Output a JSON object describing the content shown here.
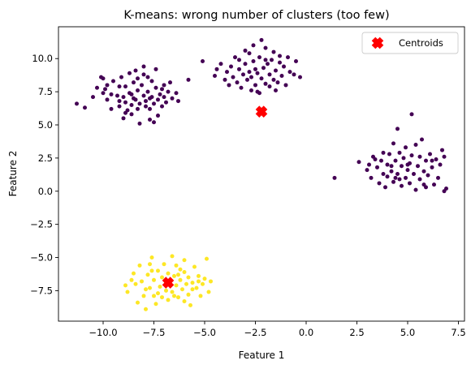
{
  "chart_data": {
    "type": "scatter",
    "title": "K-means: wrong number of clusters (too few)",
    "xlabel": "Feature 1",
    "ylabel": "Feature 2",
    "xlim": [
      -12.2,
      7.8
    ],
    "ylim": [
      -9.8,
      12.4
    ],
    "xticks": [
      -10.0,
      -7.5,
      -5.0,
      -2.5,
      0.0,
      2.5,
      5.0,
      7.5
    ],
    "xtick_labels": [
      "−10.0",
      "−7.5",
      "−5.0",
      "−2.5",
      "0.0",
      "2.5",
      "5.0",
      "7.5"
    ],
    "yticks": [
      -7.5,
      -5.0,
      -2.5,
      0.0,
      2.5,
      5.0,
      7.5,
      10.0
    ],
    "ytick_labels": [
      "−7.5",
      "−5.0",
      "−2.5",
      "0.0",
      "2.5",
      "5.0",
      "7.5",
      "10.0"
    ],
    "grid": false,
    "legend": {
      "position": "top-right",
      "entries": [
        "Centroids"
      ]
    },
    "colors": {
      "cluster_a": "#440154",
      "cluster_b": "#fde725",
      "centroid": "#ff0000"
    },
    "series": [
      {
        "cluster": "a",
        "points": [
          [
            -11.3,
            6.6
          ],
          [
            -10.9,
            6.3
          ],
          [
            -10.5,
            7.1
          ],
          [
            -10.3,
            7.8
          ],
          [
            -10.1,
            8.6
          ],
          [
            -10.0,
            8.5
          ],
          [
            -10.0,
            7.4
          ],
          [
            -9.8,
            6.9
          ],
          [
            -9.8,
            8.0
          ],
          [
            -9.6,
            7.3
          ],
          [
            -9.6,
            6.2
          ],
          [
            -9.5,
            8.3
          ],
          [
            -9.3,
            7.2
          ],
          [
            -9.2,
            6.8
          ],
          [
            -9.2,
            6.4
          ],
          [
            -9.1,
            8.6
          ],
          [
            -9.0,
            7.1
          ],
          [
            -9.0,
            5.5
          ],
          [
            -8.9,
            7.9
          ],
          [
            -8.9,
            6.7
          ],
          [
            -8.8,
            6.1
          ],
          [
            -8.7,
            7.4
          ],
          [
            -8.7,
            8.9
          ],
          [
            -8.6,
            6.5
          ],
          [
            -8.6,
            5.8
          ],
          [
            -8.5,
            7.0
          ],
          [
            -8.5,
            8.2
          ],
          [
            -8.4,
            6.9
          ],
          [
            -8.4,
            9.1
          ],
          [
            -8.3,
            7.6
          ],
          [
            -8.3,
            6.2
          ],
          [
            -8.2,
            6.6
          ],
          [
            -8.2,
            5.1
          ],
          [
            -8.1,
            8.0
          ],
          [
            -8.0,
            7.2
          ],
          [
            -8.0,
            9.4
          ],
          [
            -7.9,
            6.8
          ],
          [
            -7.9,
            6.4
          ],
          [
            -7.8,
            7.5
          ],
          [
            -7.8,
            8.6
          ],
          [
            -7.7,
            6.2
          ],
          [
            -7.7,
            5.4
          ],
          [
            -7.6,
            7.1
          ],
          [
            -7.6,
            8.3
          ],
          [
            -7.5,
            6.6
          ],
          [
            -7.4,
            9.2
          ],
          [
            -7.4,
            7.8
          ],
          [
            -7.3,
            6.9
          ],
          [
            -7.3,
            5.7
          ],
          [
            -7.2,
            7.3
          ],
          [
            -7.1,
            6.4
          ],
          [
            -7.0,
            8.0
          ],
          [
            -7.0,
            7.1
          ],
          [
            -6.9,
            6.7
          ],
          [
            -6.8,
            7.5
          ],
          [
            -6.7,
            8.2
          ],
          [
            -6.6,
            7.0
          ],
          [
            -6.4,
            7.4
          ],
          [
            -6.3,
            6.8
          ],
          [
            -8.0,
            8.8
          ],
          [
            -8.6,
            7.3
          ],
          [
            -9.2,
            7.9
          ],
          [
            -7.5,
            5.2
          ],
          [
            -8.9,
            5.9
          ],
          [
            -9.9,
            7.7
          ],
          [
            -7.1,
            7.7
          ],
          [
            -8.3,
            8.5
          ],
          [
            -7.7,
            7.0
          ],
          [
            -5.8,
            8.4
          ],
          [
            -5.1,
            9.8
          ],
          [
            -4.5,
            8.7
          ],
          [
            -4.2,
            9.6
          ],
          [
            -4.0,
            8.4
          ],
          [
            -3.9,
            9.0
          ],
          [
            -3.8,
            8.0
          ],
          [
            -3.7,
            9.4
          ],
          [
            -3.6,
            8.6
          ],
          [
            -3.5,
            10.1
          ],
          [
            -3.4,
            8.2
          ],
          [
            -3.3,
            9.2
          ],
          [
            -3.2,
            7.8
          ],
          [
            -3.1,
            8.8
          ],
          [
            -3.0,
            9.6
          ],
          [
            -2.9,
            8.4
          ],
          [
            -2.8,
            10.4
          ],
          [
            -2.8,
            9.0
          ],
          [
            -2.7,
            7.6
          ],
          [
            -2.7,
            8.6
          ],
          [
            -2.6,
            9.8
          ],
          [
            -2.5,
            9.2
          ],
          [
            -2.5,
            8.0
          ],
          [
            -2.4,
            8.9
          ],
          [
            -2.3,
            10.1
          ],
          [
            -2.3,
            7.4
          ],
          [
            -2.2,
            8.5
          ],
          [
            -2.2,
            11.4
          ],
          [
            -2.1,
            9.3
          ],
          [
            -2.0,
            8.1
          ],
          [
            -2.0,
            10.8
          ],
          [
            -1.9,
            9.6
          ],
          [
            -1.8,
            8.8
          ],
          [
            -1.8,
            7.9
          ],
          [
            -1.7,
            9.9
          ],
          [
            -1.6,
            8.4
          ],
          [
            -1.6,
            10.5
          ],
          [
            -1.5,
            9.1
          ],
          [
            -1.4,
            8.2
          ],
          [
            -1.3,
            9.7
          ],
          [
            -1.3,
            10.2
          ],
          [
            -1.2,
            8.7
          ],
          [
            -1.1,
            9.4
          ],
          [
            -1.0,
            8.0
          ],
          [
            -0.9,
            10.1
          ],
          [
            -0.8,
            9.0
          ],
          [
            -0.6,
            8.8
          ],
          [
            -0.5,
            9.8
          ],
          [
            -0.3,
            8.6
          ],
          [
            -2.6,
            11.0
          ],
          [
            -3.0,
            10.6
          ],
          [
            -2.4,
            7.5
          ],
          [
            -1.5,
            7.6
          ],
          [
            -3.3,
            9.9
          ],
          [
            -4.4,
            9.2
          ],
          [
            -2.0,
            9.9
          ],
          [
            1.4,
            1.0
          ],
          [
            2.6,
            2.2
          ],
          [
            3.0,
            1.6
          ],
          [
            3.2,
            1.0
          ],
          [
            3.3,
            2.6
          ],
          [
            3.5,
            1.8
          ],
          [
            3.6,
            0.6
          ],
          [
            3.7,
            2.3
          ],
          [
            3.8,
            1.3
          ],
          [
            3.8,
            2.9
          ],
          [
            3.9,
            0.3
          ],
          [
            4.0,
            2.0
          ],
          [
            4.0,
            1.1
          ],
          [
            4.1,
            2.8
          ],
          [
            4.2,
            1.5
          ],
          [
            4.3,
            3.6
          ],
          [
            4.3,
            0.7
          ],
          [
            4.4,
            2.3
          ],
          [
            4.5,
            4.7
          ],
          [
            4.5,
            1.3
          ],
          [
            4.6,
            2.9
          ],
          [
            4.7,
            0.4
          ],
          [
            4.7,
            1.9
          ],
          [
            4.8,
            2.5
          ],
          [
            4.9,
            1.0
          ],
          [
            4.9,
            3.3
          ],
          [
            5.0,
            1.6
          ],
          [
            5.1,
            0.6
          ],
          [
            5.1,
            2.1
          ],
          [
            5.2,
            5.8
          ],
          [
            5.2,
            2.7
          ],
          [
            5.3,
            1.3
          ],
          [
            5.4,
            3.5
          ],
          [
            5.4,
            0.1
          ],
          [
            5.5,
            1.9
          ],
          [
            5.6,
            2.6
          ],
          [
            5.6,
            0.9
          ],
          [
            5.7,
            3.9
          ],
          [
            5.8,
            1.5
          ],
          [
            5.9,
            2.3
          ],
          [
            5.9,
            0.3
          ],
          [
            6.0,
            1.2
          ],
          [
            6.1,
            2.8
          ],
          [
            6.2,
            1.8
          ],
          [
            6.3,
            0.5
          ],
          [
            6.4,
            2.4
          ],
          [
            6.5,
            1.0
          ],
          [
            6.6,
            2.0
          ],
          [
            6.7,
            3.1
          ],
          [
            6.8,
            2.6
          ],
          [
            6.8,
            0.0
          ],
          [
            6.9,
            0.2
          ],
          [
            4.4,
            1.0
          ],
          [
            3.4,
            2.4
          ],
          [
            5.0,
            2.0
          ],
          [
            4.6,
            0.9
          ],
          [
            6.2,
            2.3
          ],
          [
            5.8,
            0.5
          ],
          [
            4.2,
            1.9
          ],
          [
            3.1,
            2.0
          ]
        ]
      },
      {
        "cluster": "b",
        "points": [
          [
            -8.9,
            -7.1
          ],
          [
            -8.8,
            -7.6
          ],
          [
            -8.5,
            -6.2
          ],
          [
            -8.4,
            -7.0
          ],
          [
            -8.3,
            -8.4
          ],
          [
            -8.2,
            -5.6
          ],
          [
            -8.1,
            -6.8
          ],
          [
            -8.0,
            -7.9
          ],
          [
            -7.9,
            -8.9
          ],
          [
            -7.8,
            -6.3
          ],
          [
            -7.7,
            -7.3
          ],
          [
            -7.6,
            -5.0
          ],
          [
            -7.5,
            -7.9
          ],
          [
            -7.5,
            -6.7
          ],
          [
            -7.4,
            -8.5
          ],
          [
            -7.3,
            -6.0
          ],
          [
            -7.2,
            -7.2
          ],
          [
            -7.1,
            -6.5
          ],
          [
            -7.1,
            -8.0
          ],
          [
            -7.0,
            -5.5
          ],
          [
            -6.9,
            -7.5
          ],
          [
            -6.8,
            -6.2
          ],
          [
            -6.8,
            -8.2
          ],
          [
            -6.7,
            -6.8
          ],
          [
            -6.6,
            -4.9
          ],
          [
            -6.6,
            -7.6
          ],
          [
            -6.5,
            -6.4
          ],
          [
            -6.4,
            -7.1
          ],
          [
            -6.4,
            -5.6
          ],
          [
            -6.3,
            -8.0
          ],
          [
            -6.2,
            -6.7
          ],
          [
            -6.1,
            -7.4
          ],
          [
            -6.0,
            -6.1
          ],
          [
            -6.0,
            -5.2
          ],
          [
            -5.9,
            -7.0
          ],
          [
            -5.8,
            -7.8
          ],
          [
            -5.8,
            -6.5
          ],
          [
            -5.7,
            -8.6
          ],
          [
            -5.6,
            -6.9
          ],
          [
            -5.5,
            -5.7
          ],
          [
            -5.4,
            -7.3
          ],
          [
            -5.3,
            -6.4
          ],
          [
            -5.2,
            -7.9
          ],
          [
            -5.1,
            -7.0
          ],
          [
            -5.0,
            -6.6
          ],
          [
            -4.9,
            -5.1
          ],
          [
            -4.8,
            -7.6
          ],
          [
            -4.7,
            -6.8
          ],
          [
            -7.9,
            -7.4
          ],
          [
            -7.6,
            -6.0
          ],
          [
            -6.9,
            -6.9
          ],
          [
            -6.5,
            -7.9
          ],
          [
            -6.2,
            -5.9
          ],
          [
            -5.6,
            -7.4
          ],
          [
            -7.3,
            -7.7
          ],
          [
            -8.6,
            -6.7
          ],
          [
            -6.0,
            -8.3
          ],
          [
            -5.3,
            -6.8
          ],
          [
            -7.7,
            -5.5
          ],
          [
            -6.3,
            -6.3
          ]
        ]
      }
    ],
    "centroids": [
      [
        -2.2,
        6.0
      ],
      [
        -6.8,
        -6.9
      ]
    ]
  }
}
